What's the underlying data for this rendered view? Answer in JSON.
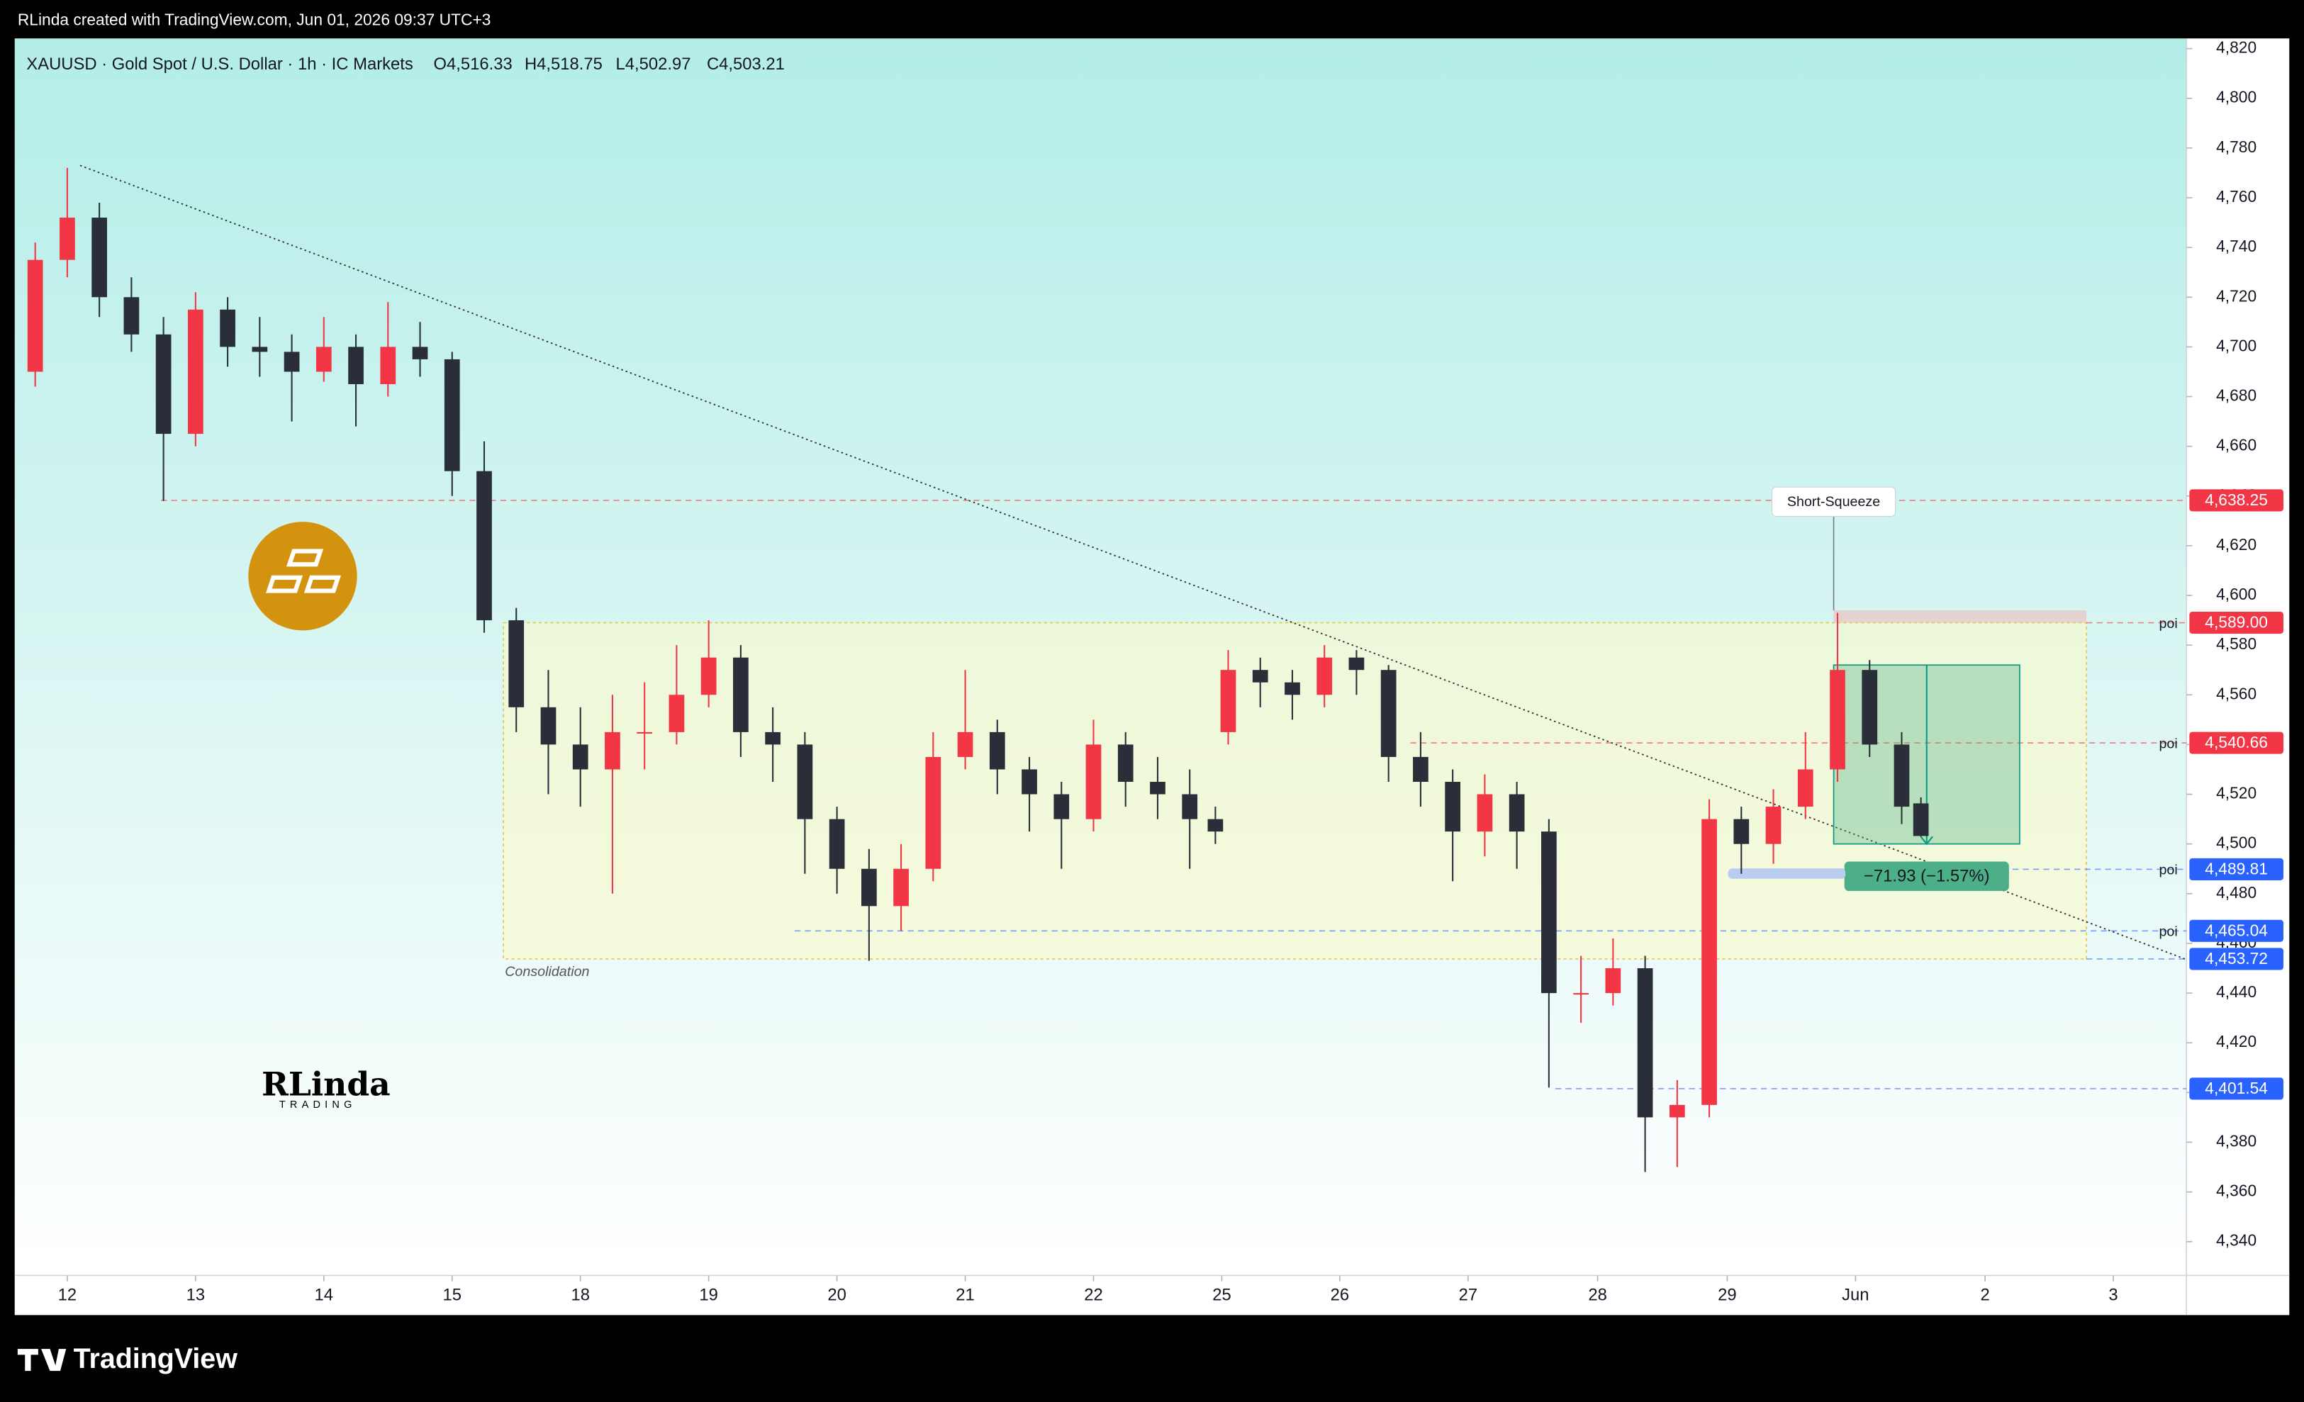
{
  "header": "RLinda created with TradingView.com, Jun 01, 2026 09:37 UTC+3",
  "footer": "TradingView",
  "logo": "RLinda",
  "logo_sub": "TRADING",
  "chart_data": {
    "type": "candlestick",
    "title": "XAUUSD · Gold Spot / U.S. Dollar · 1h · IC Markets",
    "ohlc_labels": [
      "O4,516.33",
      "H4,518.75",
      "L4,502.97",
      "C4,503.21"
    ],
    "x": [
      -0.25,
      0,
      0.25,
      0.5,
      0.75,
      1,
      1.25,
      1.5,
      1.75,
      2,
      2.25,
      2.5,
      2.75,
      3,
      3.25,
      3.5,
      3.75,
      4,
      4.25,
      4.5,
      4.75,
      5,
      5.25,
      5.5,
      5.75,
      6,
      6.25,
      6.5,
      6.75,
      7,
      7.25,
      7.5,
      7.75,
      8,
      8.25,
      8.5,
      8.75,
      8.95,
      9.05,
      9.3,
      9.55,
      9.8,
      10.05,
      10.3,
      10.55,
      10.8,
      11.05,
      11.3,
      11.55,
      11.8,
      12.05,
      12.3,
      12.55,
      12.8,
      13.05,
      13.3,
      13.55,
      13.8,
      14.05,
      14.3,
      14.45
    ],
    "open": [
      4690,
      4735,
      4752,
      4720,
      4705,
      4665,
      4715,
      4700,
      4698,
      4690,
      4700,
      4685,
      4700,
      4695,
      4650,
      4590,
      4555,
      4540,
      4530,
      4545,
      4545,
      4560,
      4575,
      4545,
      4540,
      4510,
      4490,
      4475,
      4490,
      4535,
      4545,
      4530,
      4520,
      4510,
      4540,
      4525,
      4520,
      4510,
      4545,
      4570,
      4565,
      4560,
      4575,
      4570,
      4535,
      4525,
      4505,
      4520,
      4505,
      4440,
      4440,
      4450,
      4390,
      4395,
      4510,
      4500,
      4515,
      4530,
      4570,
      4540,
      4516.33
    ],
    "high": [
      4742,
      4772,
      4758,
      4728,
      4712,
      4722,
      4720,
      4712,
      4705,
      4712,
      4705,
      4718,
      4710,
      4698,
      4662,
      4595,
      4570,
      4555,
      4560,
      4565,
      4580,
      4590,
      4580,
      4555,
      4545,
      4515,
      4498,
      4500,
      4545,
      4570,
      4550,
      4535,
      4525,
      4550,
      4545,
      4535,
      4530,
      4515,
      4578,
      4575,
      4570,
      4580,
      4578,
      4572,
      4545,
      4530,
      4528,
      4525,
      4510,
      4455,
      4462,
      4455,
      4405,
      4518,
      4515,
      4522,
      4545,
      4593,
      4574,
      4545,
      4518.75
    ],
    "low": [
      4684,
      4728,
      4712,
      4698,
      4638,
      4660,
      4692,
      4688,
      4670,
      4686,
      4668,
      4680,
      4688,
      4640,
      4585,
      4545,
      4520,
      4515,
      4480,
      4530,
      4540,
      4555,
      4535,
      4525,
      4488,
      4480,
      4453,
      4465,
      4485,
      4530,
      4520,
      4505,
      4490,
      4505,
      4515,
      4510,
      4490,
      4500,
      4540,
      4555,
      4550,
      4555,
      4560,
      4525,
      4515,
      4485,
      4495,
      4490,
      4402,
      4428,
      4435,
      4368,
      4370,
      4390,
      4488,
      4492,
      4510,
      4525,
      4535,
      4508,
      4502.97
    ],
    "close": [
      4735,
      4752,
      4720,
      4705,
      4665,
      4715,
      4700,
      4698,
      4690,
      4700,
      4685,
      4700,
      4695,
      4650,
      4590,
      4555,
      4540,
      4530,
      4545,
      4545,
      4560,
      4575,
      4545,
      4540,
      4510,
      4490,
      4475,
      4490,
      4535,
      4545,
      4530,
      4520,
      4510,
      4540,
      4525,
      4520,
      4510,
      4505,
      4570,
      4565,
      4560,
      4575,
      4570,
      4535,
      4525,
      4505,
      4520,
      4505,
      4440,
      4440,
      4450,
      4390,
      4395,
      4510,
      4500,
      4515,
      4530,
      4570,
      4540,
      4515,
      4503.21
    ],
    "up_color": "#f23645",
    "down_color": "#2a2e39",
    "xlim": [
      -0.41,
      16.52
    ],
    "xticks": [
      {
        "value": 0,
        "label": "12"
      },
      {
        "value": 1,
        "label": "13"
      },
      {
        "value": 2,
        "label": "14"
      },
      {
        "value": 3,
        "label": "15"
      },
      {
        "value": 4,
        "label": "18"
      },
      {
        "value": 5,
        "label": "19"
      },
      {
        "value": 6,
        "label": "20"
      },
      {
        "value": 7,
        "label": "21"
      },
      {
        "value": 8,
        "label": "22"
      },
      {
        "value": 9,
        "label": "25"
      },
      {
        "value": 9.92,
        "label": "26"
      },
      {
        "value": 10.92,
        "label": "27"
      },
      {
        "value": 11.93,
        "label": "28"
      },
      {
        "value": 12.94,
        "label": "29"
      },
      {
        "value": 13.94,
        "label": "Jun"
      },
      {
        "value": 14.95,
        "label": "2"
      },
      {
        "value": 15.95,
        "label": "3"
      }
    ],
    "ylim": [
      4326.4,
      4824.1
    ],
    "yticks": [
      {
        "value": 4340,
        "label": "4,340"
      },
      {
        "value": 4360,
        "label": "4,360"
      },
      {
        "value": 4380,
        "label": "4,380"
      },
      {
        "value": 4400,
        "label": "4,400"
      },
      {
        "value": 4420,
        "label": "4,420"
      },
      {
        "value": 4440,
        "label": "4,440"
      },
      {
        "value": 4460,
        "label": "4,460"
      },
      {
        "value": 4480,
        "label": "4,480"
      },
      {
        "value": 4500,
        "label": "4,500"
      },
      {
        "value": 4520,
        "label": "4,520"
      },
      {
        "value": 4540,
        "label": "4,540"
      },
      {
        "value": 4560,
        "label": "4,560"
      },
      {
        "value": 4580,
        "label": "4,580"
      },
      {
        "value": 4600,
        "label": "4,600"
      },
      {
        "value": 4620,
        "label": "4,620"
      },
      {
        "value": 4640,
        "label": "4,640"
      },
      {
        "value": 4660,
        "label": "4,660"
      },
      {
        "value": 4680,
        "label": "4,680"
      },
      {
        "value": 4700,
        "label": "4,700"
      },
      {
        "value": 4720,
        "label": "4,720"
      },
      {
        "value": 4740,
        "label": "4,740"
      },
      {
        "value": 4760,
        "label": "4,760"
      },
      {
        "value": 4780,
        "label": "4,780"
      },
      {
        "value": 4800,
        "label": "4,800"
      },
      {
        "value": 4820,
        "label": "4,820"
      }
    ],
    "levels": [
      {
        "value": 4638.25,
        "label": "4,638.25",
        "color": "#f23645",
        "from": 0.73
      },
      {
        "value": 4589,
        "label": "4,589.00",
        "color": "#f23645",
        "from": 15.74,
        "note": "poi"
      },
      {
        "value": 4540.66,
        "label": "4,540.66",
        "color": "#f23645",
        "from": 10.47,
        "note": "poi"
      },
      {
        "value": 4489.81,
        "label": "4,489.81",
        "color": "#2962ff",
        "from": 13.0,
        "note": "poi"
      },
      {
        "value": 4465.04,
        "label": "4,465.04",
        "color": "#2962ff",
        "from": 5.67,
        "note": "poi"
      },
      {
        "value": 4453.72,
        "label": "4,453.72",
        "color": "#2962ff",
        "from": 15.74
      },
      {
        "value": 4401.54,
        "label": "4,401.54",
        "color": "#2962ff",
        "from": 11.6
      }
    ],
    "zone": {
      "label": "Consolidation",
      "x": [
        3.4,
        15.74
      ],
      "y": [
        4453.72,
        4589
      ]
    },
    "trendline": {
      "x": [
        0.1,
        16.52
      ],
      "y": [
        4773,
        4453.5
      ]
    },
    "annotation": {
      "text": "Short-Squeeze",
      "x": 13.77,
      "y": 4630
    },
    "position": {
      "x": [
        13.77,
        15.22
      ],
      "entry": 4572,
      "target": 4500,
      "stop": 4594,
      "label": "−71.93 (−1.57%)"
    }
  }
}
